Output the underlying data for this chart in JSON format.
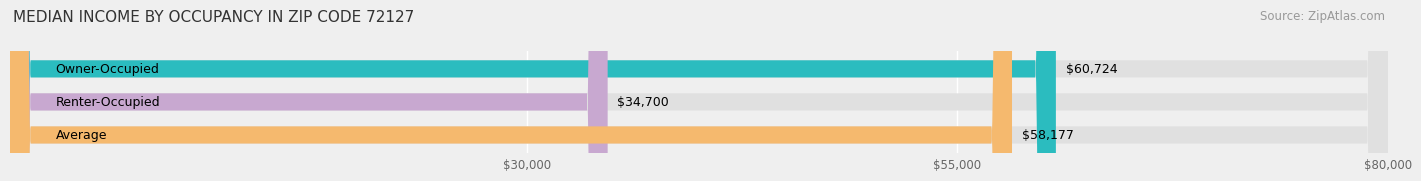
{
  "title": "MEDIAN INCOME BY OCCUPANCY IN ZIP CODE 72127",
  "source_text": "Source: ZipAtlas.com",
  "categories": [
    "Owner-Occupied",
    "Renter-Occupied",
    "Average"
  ],
  "values": [
    60724,
    34700,
    58177
  ],
  "bar_colors": [
    "#2bbcbf",
    "#c8a8d0",
    "#f5b96e"
  ],
  "bar_labels": [
    "$60,724",
    "$34,700",
    "$58,177"
  ],
  "xlim": [
    0,
    80000
  ],
  "xticks": [
    30000,
    55000,
    80000
  ],
  "xticklabels": [
    "$30,000",
    "$55,000",
    "$80,000"
  ],
  "background_color": "#efefef",
  "bar_bg_color": "#e0e0e0",
  "title_fontsize": 11,
  "source_fontsize": 8.5,
  "label_fontsize": 9,
  "tick_fontsize": 8.5,
  "bar_height": 0.52
}
